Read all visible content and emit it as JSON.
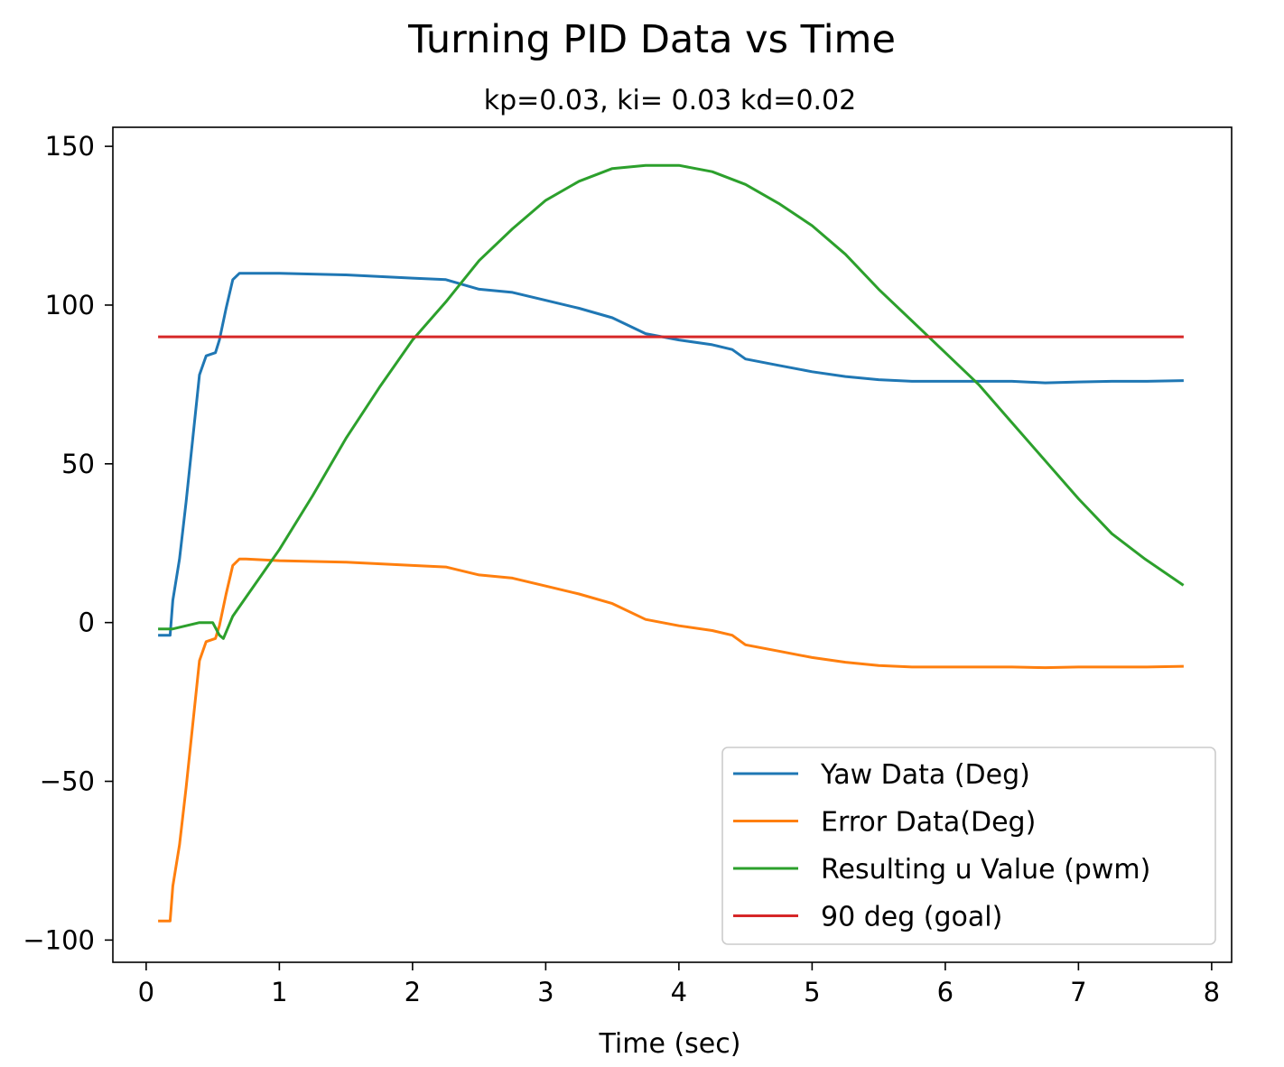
{
  "chart_data": {
    "type": "line",
    "title": "Turning PID Data vs Time",
    "subtitle": "kp=0.03, ki= 0.03 kd=0.02",
    "xlabel": "Time (sec)",
    "ylabel": "",
    "xlim": [
      -0.25,
      8.15
    ],
    "ylim": [
      -107,
      156
    ],
    "xticks": [
      0,
      1,
      2,
      3,
      4,
      5,
      6,
      7,
      8
    ],
    "yticks": [
      -100,
      -50,
      0,
      50,
      100,
      150
    ],
    "xtick_labels": [
      "0",
      "1",
      "2",
      "3",
      "4",
      "5",
      "6",
      "7",
      "8"
    ],
    "ytick_labels": [
      "−100",
      "−50",
      "0",
      "50",
      "100",
      "150"
    ],
    "grid": false,
    "legend_position": "lower-right",
    "series": [
      {
        "name": "Yaw Data (Deg)",
        "color": "#1f77b4",
        "x": [
          0.1,
          0.18,
          0.2,
          0.25,
          0.3,
          0.35,
          0.4,
          0.45,
          0.52,
          0.55,
          0.6,
          0.65,
          0.7,
          0.75,
          1.0,
          1.5,
          2.0,
          2.25,
          2.5,
          2.75,
          3.0,
          3.25,
          3.5,
          3.75,
          4.0,
          4.25,
          4.4,
          4.5,
          4.75,
          5.0,
          5.25,
          5.5,
          5.75,
          6.0,
          6.25,
          6.5,
          6.75,
          7.0,
          7.25,
          7.5,
          7.78
        ],
        "y": [
          -4,
          -4,
          7,
          20,
          38,
          58,
          78,
          84,
          85,
          89,
          99,
          108,
          110,
          110,
          110,
          109.5,
          108.5,
          108,
          105,
          104,
          101.5,
          99,
          96,
          91,
          89,
          87.5,
          86,
          83,
          81,
          79,
          77.5,
          76.5,
          76,
          76,
          76,
          76,
          75.5,
          75.8,
          76,
          76,
          76.2
        ]
      },
      {
        "name": "Error Data(Deg)",
        "color": "#ff7f0e",
        "x": [
          0.1,
          0.18,
          0.2,
          0.25,
          0.3,
          0.35,
          0.4,
          0.45,
          0.52,
          0.55,
          0.6,
          0.65,
          0.7,
          0.75,
          1.0,
          1.5,
          2.0,
          2.25,
          2.5,
          2.75,
          3.0,
          3.25,
          3.5,
          3.75,
          4.0,
          4.25,
          4.4,
          4.5,
          4.75,
          5.0,
          5.25,
          5.5,
          5.75,
          6.0,
          6.25,
          6.5,
          6.75,
          7.0,
          7.25,
          7.5,
          7.78
        ],
        "y": [
          -94,
          -94,
          -83,
          -70,
          -52,
          -32,
          -12,
          -6,
          -5,
          -1,
          9,
          18,
          20,
          20,
          19.5,
          19,
          18,
          17.5,
          15,
          14,
          11.5,
          9,
          6,
          1,
          -1,
          -2.5,
          -4,
          -7,
          -9,
          -11,
          -12.5,
          -13.5,
          -14,
          -14,
          -14,
          -14,
          -14.2,
          -14,
          -14,
          -14,
          -13.8
        ]
      },
      {
        "name": "Resulting u Value (pwm)",
        "color": "#2ca02c",
        "x": [
          0.1,
          0.2,
          0.3,
          0.4,
          0.5,
          0.55,
          0.58,
          0.65,
          0.75,
          0.9,
          1.0,
          1.25,
          1.5,
          1.75,
          2.0,
          2.25,
          2.5,
          2.75,
          3.0,
          3.25,
          3.5,
          3.75,
          4.0,
          4.25,
          4.5,
          4.75,
          5.0,
          5.25,
          5.5,
          5.75,
          6.0,
          6.25,
          6.5,
          6.75,
          7.0,
          7.25,
          7.5,
          7.78
        ],
        "y": [
          -2,
          -2,
          -1,
          0,
          0,
          -4,
          -5,
          2,
          8,
          17,
          23,
          40,
          58,
          74,
          89,
          101,
          114,
          124,
          133,
          139,
          143,
          144,
          144,
          142,
          138,
          132,
          125,
          116,
          105,
          95,
          85,
          75,
          63,
          51,
          39,
          28,
          20,
          12
        ]
      },
      {
        "name": "90 deg (goal)",
        "color": "#d62728",
        "x": [
          0.1,
          7.78
        ],
        "y": [
          90,
          90
        ]
      }
    ]
  }
}
